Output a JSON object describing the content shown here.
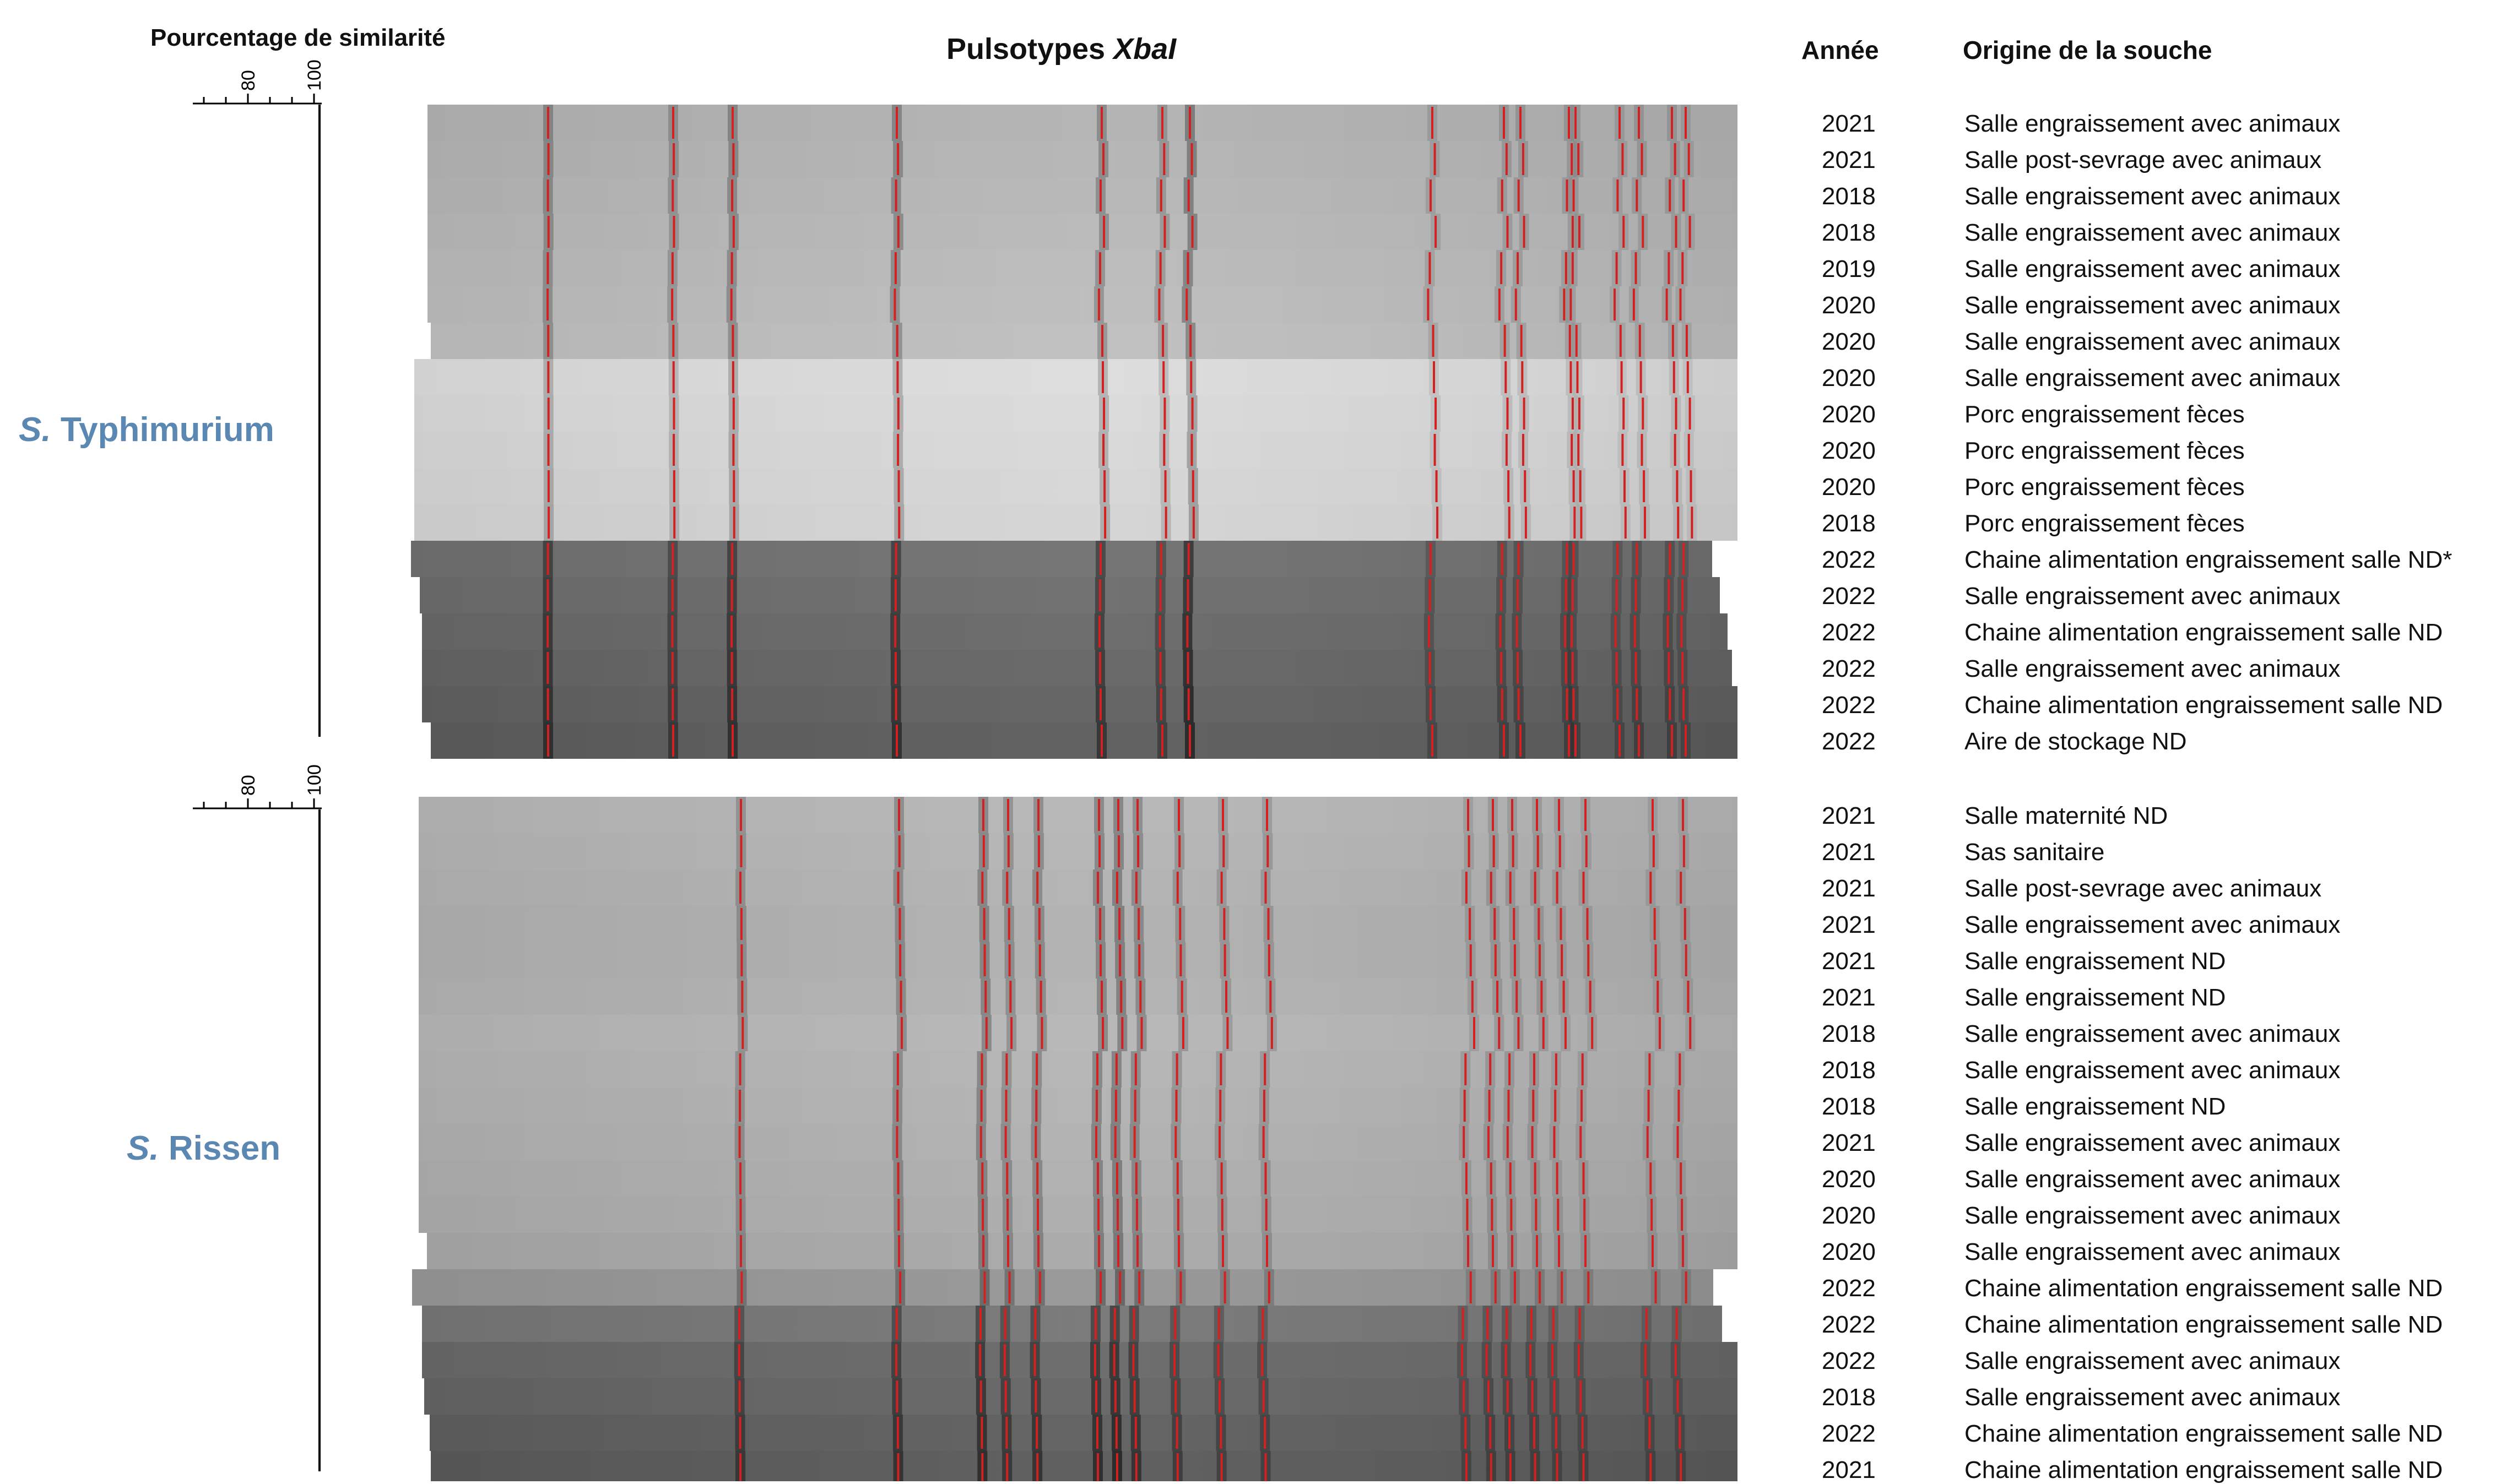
{
  "header": {
    "scale_title": "Pourcentage de similarité",
    "gel_title_prefix": "Pulsotypes ",
    "gel_title_enzyme": "XbaI",
    "col_year": "Année",
    "col_origin": "Origine de la souche"
  },
  "scale": {
    "ticks": [
      "80",
      "100"
    ]
  },
  "colors": {
    "band_marker": "#d42020",
    "serovar_label": "#5b87b3"
  },
  "groups": [
    {
      "genus": "S.",
      "serovar": "Typhimurium",
      "rows": [
        {
          "year": "2021",
          "origin": "Salle engraissement avec animaux"
        },
        {
          "year": "2021",
          "origin": "Salle post-sevrage avec animaux"
        },
        {
          "year": "2018",
          "origin": "Salle engraissement avec animaux"
        },
        {
          "year": "2018",
          "origin": "Salle engraissement avec animaux"
        },
        {
          "year": "2019",
          "origin": "Salle engraissement avec animaux"
        },
        {
          "year": "2020",
          "origin": "Salle engraissement avec animaux"
        },
        {
          "year": "2020",
          "origin": "Salle engraissement avec animaux"
        },
        {
          "year": "2020",
          "origin": "Salle engraissement avec animaux"
        },
        {
          "year": "2020",
          "origin": "Porc engraissement fèces"
        },
        {
          "year": "2020",
          "origin": "Porc engraissement fèces"
        },
        {
          "year": "2020",
          "origin": "Porc engraissement fèces"
        },
        {
          "year": "2018",
          "origin": "Porc engraissement fèces"
        },
        {
          "year": "2022",
          "origin": "Chaine alimentation engraissement salle ND*"
        },
        {
          "year": "2022",
          "origin": "Salle engraissement avec animaux"
        },
        {
          "year": "2022",
          "origin": "Chaine alimentation engraissement salle ND"
        },
        {
          "year": "2022",
          "origin": "Salle engraissement avec animaux"
        },
        {
          "year": "2022",
          "origin": "Chaine alimentation engraissement salle ND"
        },
        {
          "year": "2022",
          "origin": "Aire de stockage ND"
        }
      ]
    },
    {
      "genus": "S.",
      "serovar": "Rissen",
      "rows": [
        {
          "year": "2021",
          "origin": "Salle maternité ND"
        },
        {
          "year": "2021",
          "origin": "Sas sanitaire"
        },
        {
          "year": "2021",
          "origin": "Salle post-sevrage avec animaux"
        },
        {
          "year": "2021",
          "origin": "Salle engraissement avec animaux"
        },
        {
          "year": "2021",
          "origin": "Salle engraissement ND"
        },
        {
          "year": "2021",
          "origin": "Salle engraissement ND"
        },
        {
          "year": "2018",
          "origin": "Salle engraissement avec animaux"
        },
        {
          "year": "2018",
          "origin": "Salle engraissement avec animaux"
        },
        {
          "year": "2018",
          "origin": "Salle engraissement ND"
        },
        {
          "year": "2021",
          "origin": "Salle engraissement avec animaux"
        },
        {
          "year": "2020",
          "origin": "Salle engraissement avec animaux"
        },
        {
          "year": "2020",
          "origin": "Salle engraissement avec animaux"
        },
        {
          "year": "2020",
          "origin": "Salle engraissement avec animaux"
        },
        {
          "year": "2022",
          "origin": "Chaine alimentation engraissement salle ND"
        },
        {
          "year": "2022",
          "origin": "Chaine alimentation engraissement salle ND"
        },
        {
          "year": "2022",
          "origin": "Salle engraissement avec animaux"
        },
        {
          "year": "2018",
          "origin": "Salle engraissement avec animaux"
        },
        {
          "year": "2022",
          "origin": "Chaine alimentation engraissement salle ND"
        },
        {
          "year": "2021",
          "origin": "Chaine alimentation engraissement salle ND"
        }
      ]
    }
  ]
}
